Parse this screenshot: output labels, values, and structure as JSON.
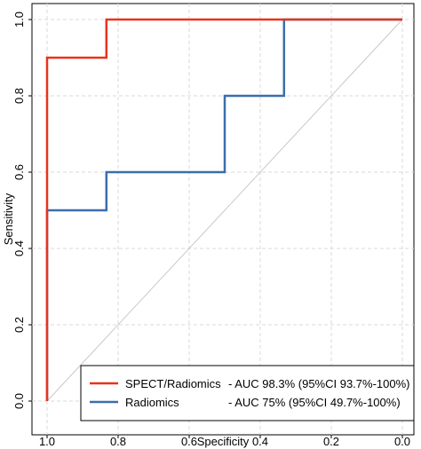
{
  "chart_data": {
    "type": "line",
    "title": "",
    "xlabel": "Specificity",
    "ylabel": "Sensitivity",
    "xlim": [
      1.0,
      0.0
    ],
    "ylim": [
      0.0,
      1.0
    ],
    "x_reversed": true,
    "x_ticks": [
      "1.0",
      "0.8",
      "0.6",
      "0.4",
      "0.2",
      "0.0"
    ],
    "y_ticks": [
      "0.0",
      "0.2",
      "0.4",
      "0.6",
      "0.8",
      "1.0"
    ],
    "grid": true,
    "reference_line": {
      "from": [
        1.0,
        0.0
      ],
      "to": [
        0.0,
        1.0
      ],
      "color": "#c8c8c8"
    },
    "legend_position": "bottom-right",
    "series": [
      {
        "name": "SPECT/Radiomics",
        "legend_metric": "- AUC 98.3% (95%CI 93.7%-100%)",
        "color": "#e8331c",
        "points": [
          [
            1.0,
            0.0
          ],
          [
            1.0,
            0.5
          ],
          [
            1.0,
            0.9
          ],
          [
            0.833,
            0.9
          ],
          [
            0.833,
            1.0
          ],
          [
            0.333,
            1.0
          ],
          [
            0.0,
            1.0
          ]
        ]
      },
      {
        "name": "Radiomics",
        "legend_metric": "- AUC 75% (95%CI 49.7%-100%)",
        "color": "#3a6ead",
        "points": [
          [
            1.0,
            0.0
          ],
          [
            1.0,
            0.5
          ],
          [
            0.833,
            0.5
          ],
          [
            0.833,
            0.6
          ],
          [
            0.5,
            0.6
          ],
          [
            0.5,
            0.8
          ],
          [
            0.333,
            0.8
          ],
          [
            0.333,
            1.0
          ],
          [
            0.0,
            1.0
          ]
        ]
      }
    ]
  }
}
